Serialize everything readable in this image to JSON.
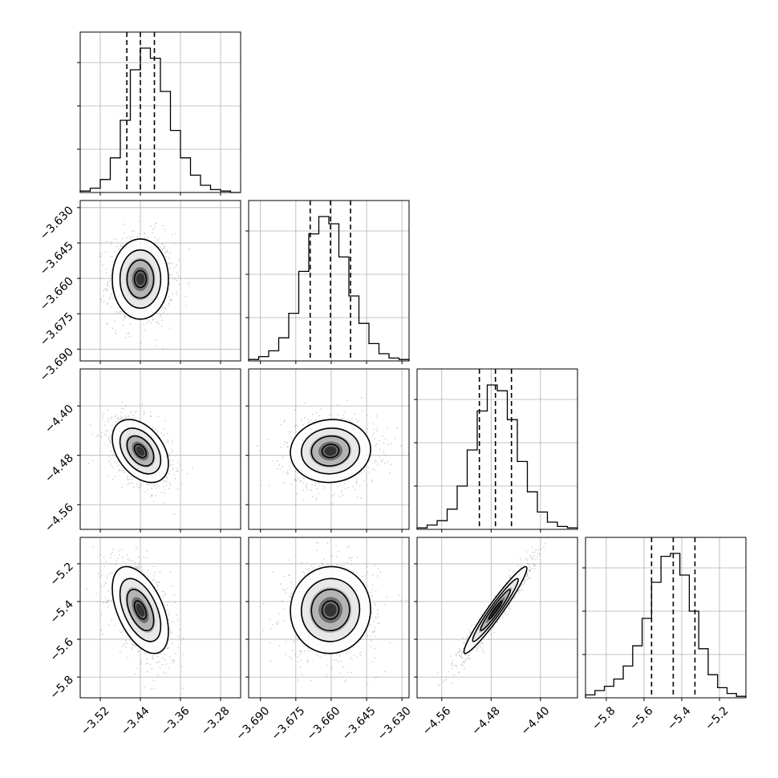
{
  "chart_data": {
    "type": "corner",
    "grid": true,
    "quantiles": [
      0.16,
      0.5,
      0.84
    ],
    "parameters": [
      {
        "index": 0,
        "range": [
          -3.56,
          -3.24
        ],
        "ticks": [
          -3.52,
          -3.44,
          -3.36,
          -3.28
        ],
        "tick_labels": [
          "−3.52",
          "−3.44",
          "−3.36",
          "−3.28"
        ],
        "mean": -3.44,
        "sigma": 0.028,
        "quantile_values": [
          -3.467,
          -3.44,
          -3.412
        ]
      },
      {
        "index": 1,
        "range": [
          -3.695,
          -3.627
        ],
        "ticks": [
          -3.69,
          -3.675,
          -3.66,
          -3.645,
          -3.63
        ],
        "tick_labels": [
          "−3.690",
          "−3.675",
          "−3.660",
          "−3.645",
          "−3.630"
        ],
        "mean": -3.6603,
        "sigma": 0.0085,
        "quantile_values": [
          -3.6689,
          -3.6603,
          -3.6518
        ]
      },
      {
        "index": 2,
        "range": [
          -4.6,
          -4.34
        ],
        "ticks": [
          -4.56,
          -4.48,
          -4.4
        ],
        "tick_labels": [
          "−4.56",
          "−4.48",
          "−4.40"
        ],
        "mean": -4.473,
        "sigma": 0.0255,
        "quantile_values": [
          -4.499,
          -4.473,
          -4.447
        ]
      },
      {
        "index": 3,
        "range": [
          -5.91,
          -5.06
        ],
        "ticks": [
          -5.8,
          -5.6,
          -5.4,
          -5.2
        ],
        "tick_labels": [
          "−5.8",
          "−5.6",
          "−5.4",
          "−5.2"
        ],
        "mean": -5.445,
        "sigma": 0.115,
        "quantile_values": [
          -5.56,
          -5.445,
          -5.33
        ]
      }
    ],
    "histograms": [
      {
        "param": 0,
        "counts": [
          1,
          3,
          9,
          24,
          50,
          85,
          100,
          93,
          70,
          43,
          24,
          12,
          5,
          2,
          1,
          0
        ]
      },
      {
        "param": 1,
        "counts": [
          1,
          3,
          7,
          16,
          33,
          62,
          88,
          100,
          95,
          72,
          45,
          26,
          12,
          5,
          2,
          1
        ]
      },
      {
        "param": 2,
        "counts": [
          1,
          3,
          6,
          14,
          30,
          55,
          82,
          100,
          96,
          76,
          47,
          26,
          12,
          5,
          2,
          1
        ]
      },
      {
        "param": 3,
        "counts": [
          2,
          5,
          8,
          13,
          22,
          36,
          55,
          80,
          98,
          100,
          85,
          60,
          34,
          16,
          7,
          3,
          1
        ]
      }
    ],
    "pairs": [
      {
        "x_param": 0,
        "y_param": 1,
        "correlation": 0.0
      },
      {
        "x_param": 0,
        "y_param": 2,
        "correlation": -0.4
      },
      {
        "x_param": 1,
        "y_param": 2,
        "correlation": 0.05
      },
      {
        "x_param": 0,
        "y_param": 3,
        "correlation": -0.5
      },
      {
        "x_param": 1,
        "y_param": 3,
        "correlation": 0.02
      },
      {
        "x_param": 2,
        "y_param": 3,
        "correlation": 0.96
      }
    ]
  }
}
